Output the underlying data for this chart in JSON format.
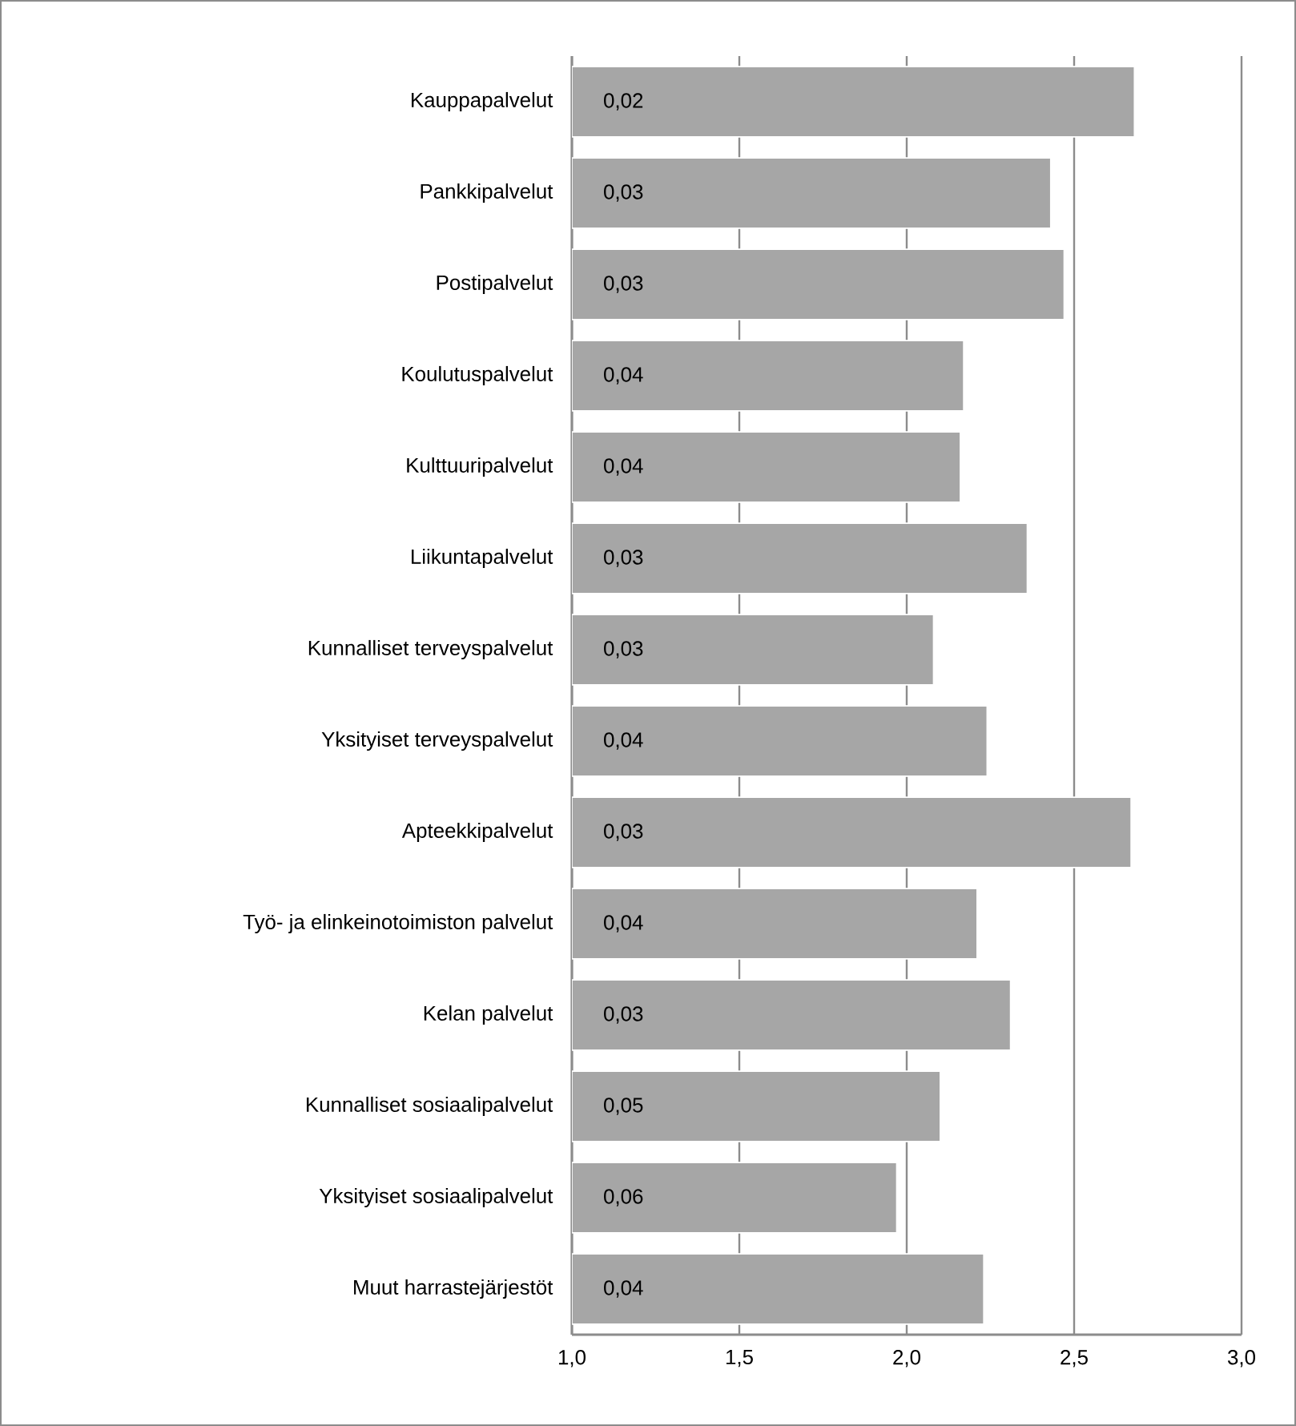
{
  "chart_data": {
    "type": "bar",
    "orientation": "horizontal",
    "categories": [
      "Kauppapalvelut",
      "Pankkipalvelut",
      "Postipalvelut",
      "Koulutuspalvelut",
      "Kulttuuripalvelut",
      "Liikuntapalvelut",
      "Kunnalliset terveyspalvelut",
      "Yksityiset terveyspalvelut",
      "Apteekkipalvelut",
      "Työ- ja elinkeinotoimiston palvelut",
      "Kelan palvelut",
      "Kunnalliset sosiaalipalvelut",
      "Yksityiset sosiaalipalvelut",
      "Muut harrastejärjestöt"
    ],
    "values": [
      2.68,
      2.43,
      2.47,
      2.17,
      2.16,
      2.36,
      2.08,
      2.24,
      2.67,
      2.21,
      2.31,
      2.1,
      1.97,
      2.23
    ],
    "annotations": [
      {
        "text": "0,02",
        "y": "Kauppapalvelut"
      },
      {
        "text": "0,03",
        "y": "Pankkipalvelut"
      },
      {
        "text": "0,03",
        "y": "Postipalvelut"
      },
      {
        "text": "0,04",
        "y": "Koulutuspalvelut"
      },
      {
        "text": "0,04",
        "y": "Kulttuuripalvelut"
      },
      {
        "text": "0,03",
        "y": "Liikuntapalvelut"
      },
      {
        "text": "0,03",
        "y": "Kunnalliset terveyspalvelut"
      },
      {
        "text": "0,04",
        "y": "Yksityiset terveyspalvelut"
      },
      {
        "text": "0,03",
        "y": "Apteekkipalvelut"
      },
      {
        "text": "0,04",
        "y": "Työ- ja elinkeinotoimiston palvelut"
      },
      {
        "text": "0,03",
        "y": "Kelan palvelut"
      },
      {
        "text": "0,05",
        "y": "Kunnalliset sosiaalipalvelut"
      },
      {
        "text": "0,06",
        "y": "Yksityiset sosiaalipalvelut"
      },
      {
        "text": "0,04",
        "y": "Muut harrastejärjestöt"
      }
    ],
    "color": "#a6a6a6",
    "xlim": [
      1.0,
      3.0
    ],
    "xticks": [
      {
        "value": 1.0,
        "label": "1,0"
      },
      {
        "value": 1.5,
        "label": "1,5"
      },
      {
        "value": 2.0,
        "label": "2,0"
      },
      {
        "value": 2.5,
        "label": "2,5"
      },
      {
        "value": 3.0,
        "label": "3,0"
      }
    ],
    "grid": "x"
  }
}
